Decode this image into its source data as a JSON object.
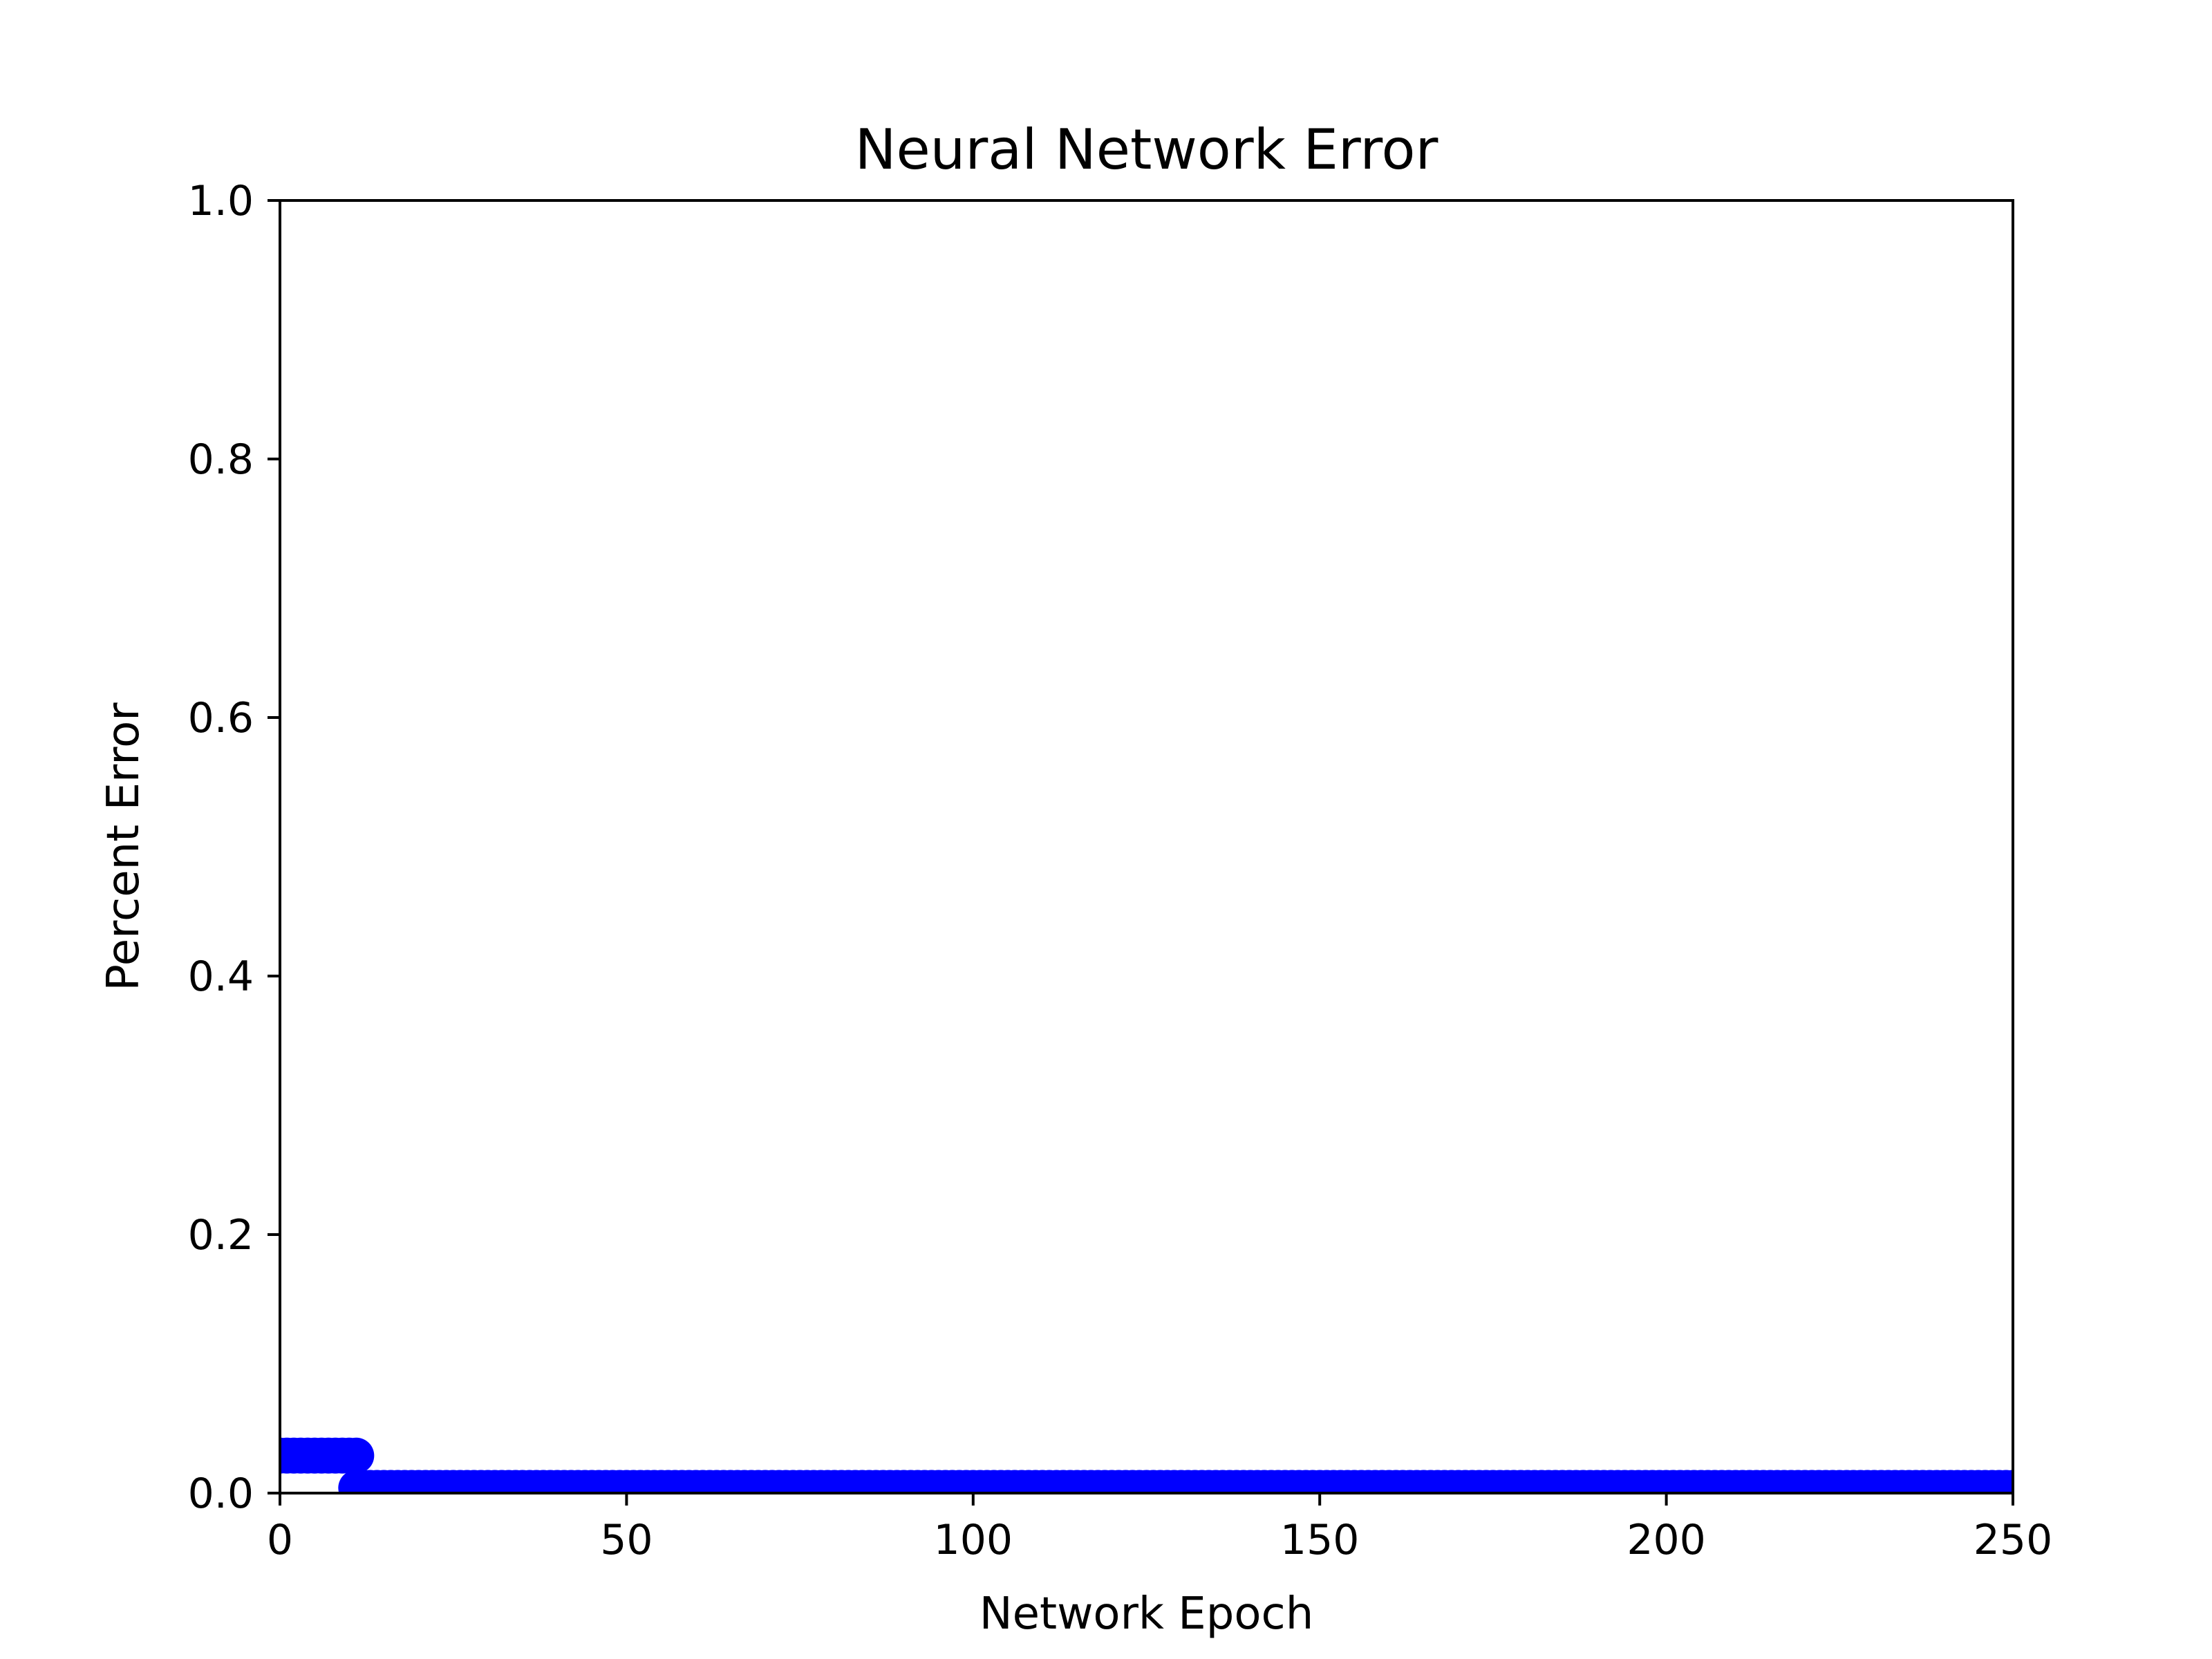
{
  "chart_data": {
    "type": "scatter",
    "title": "Neural Network Error",
    "xlabel": "Network Epoch",
    "ylabel": "Percent Error",
    "xlim": [
      0,
      250
    ],
    "ylim": [
      0,
      1.0
    ],
    "xticks": [
      0,
      50,
      100,
      150,
      200,
      250
    ],
    "yticks": [
      0.0,
      0.2,
      0.4,
      0.6,
      0.8,
      1.0
    ],
    "xtick_labels": [
      "0",
      "50",
      "100",
      "150",
      "200",
      "250"
    ],
    "ytick_labels": [
      "0.0",
      "0.2",
      "0.4",
      "0.6",
      "0.8",
      "1.0"
    ],
    "grid": false,
    "series": [
      {
        "color": "#ff0000",
        "marker": "line",
        "segments": [
          {
            "x": [
              0,
              11
            ],
            "y": [
              0.027,
              0.027
            ]
          },
          {
            "x": [
              11,
              250
            ],
            "y": [
              0.004,
              0.004
            ]
          }
        ]
      },
      {
        "color": "#0000ff",
        "marker": "circle",
        "points_summary": [
          {
            "x_start": 0,
            "x_end": 11,
            "y": 0.029
          },
          {
            "x_start": 11,
            "x_end": 250,
            "y": 0.004
          }
        ]
      }
    ]
  }
}
